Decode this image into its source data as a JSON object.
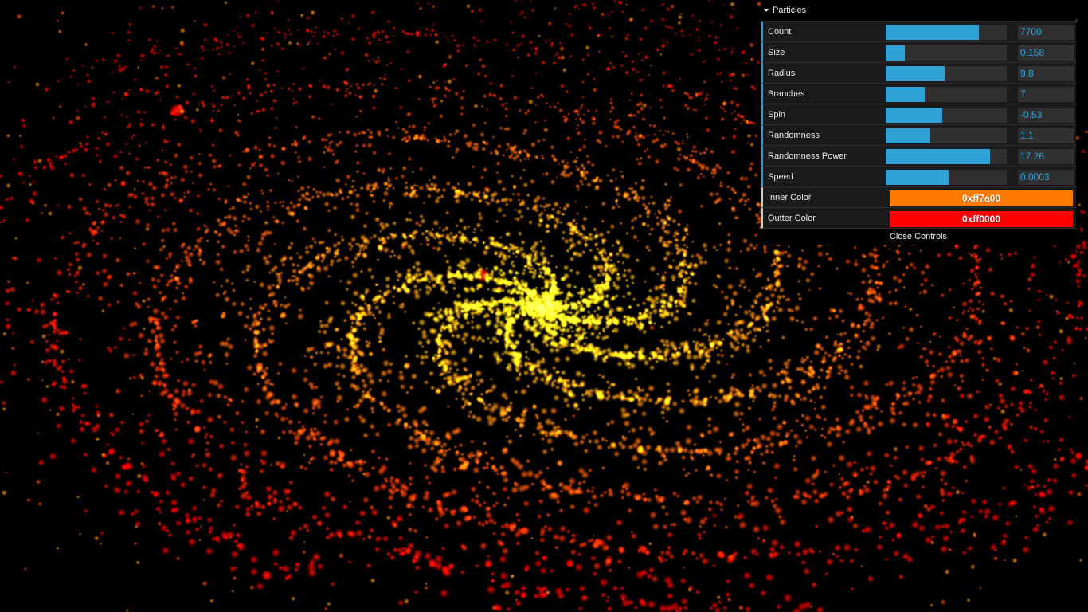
{
  "folder": {
    "title": "Particles"
  },
  "controls": [
    {
      "label": "Count",
      "value": "7700",
      "fill": 0.77
    },
    {
      "label": "Size",
      "value": "0.158",
      "fill": 0.158
    },
    {
      "label": "Radius",
      "value": "9.8",
      "fill": 0.49
    },
    {
      "label": "Branches",
      "value": "7",
      "fill": 0.32
    },
    {
      "label": "Spin",
      "value": "-0.53",
      "fill": 0.47
    },
    {
      "label": "Randomness",
      "value": "1.1",
      "fill": 0.37
    },
    {
      "label": "Randomness Power",
      "value": "17.26",
      "fill": 0.86
    },
    {
      "label": "Speed",
      "value": "0.0003",
      "fill": 0.52
    }
  ],
  "colors": [
    {
      "label": "Inner Color",
      "value": "0xff7a00",
      "hex": "#ff7a00"
    },
    {
      "label": "Outter Color",
      "value": "0xff0000",
      "hex": "#ff0000"
    }
  ],
  "close_label": "Close Controls",
  "theme": {
    "slider_accent": "#2fa1d6",
    "panel_bg": "#1a1a1a",
    "core_color": "#ffe81a"
  }
}
